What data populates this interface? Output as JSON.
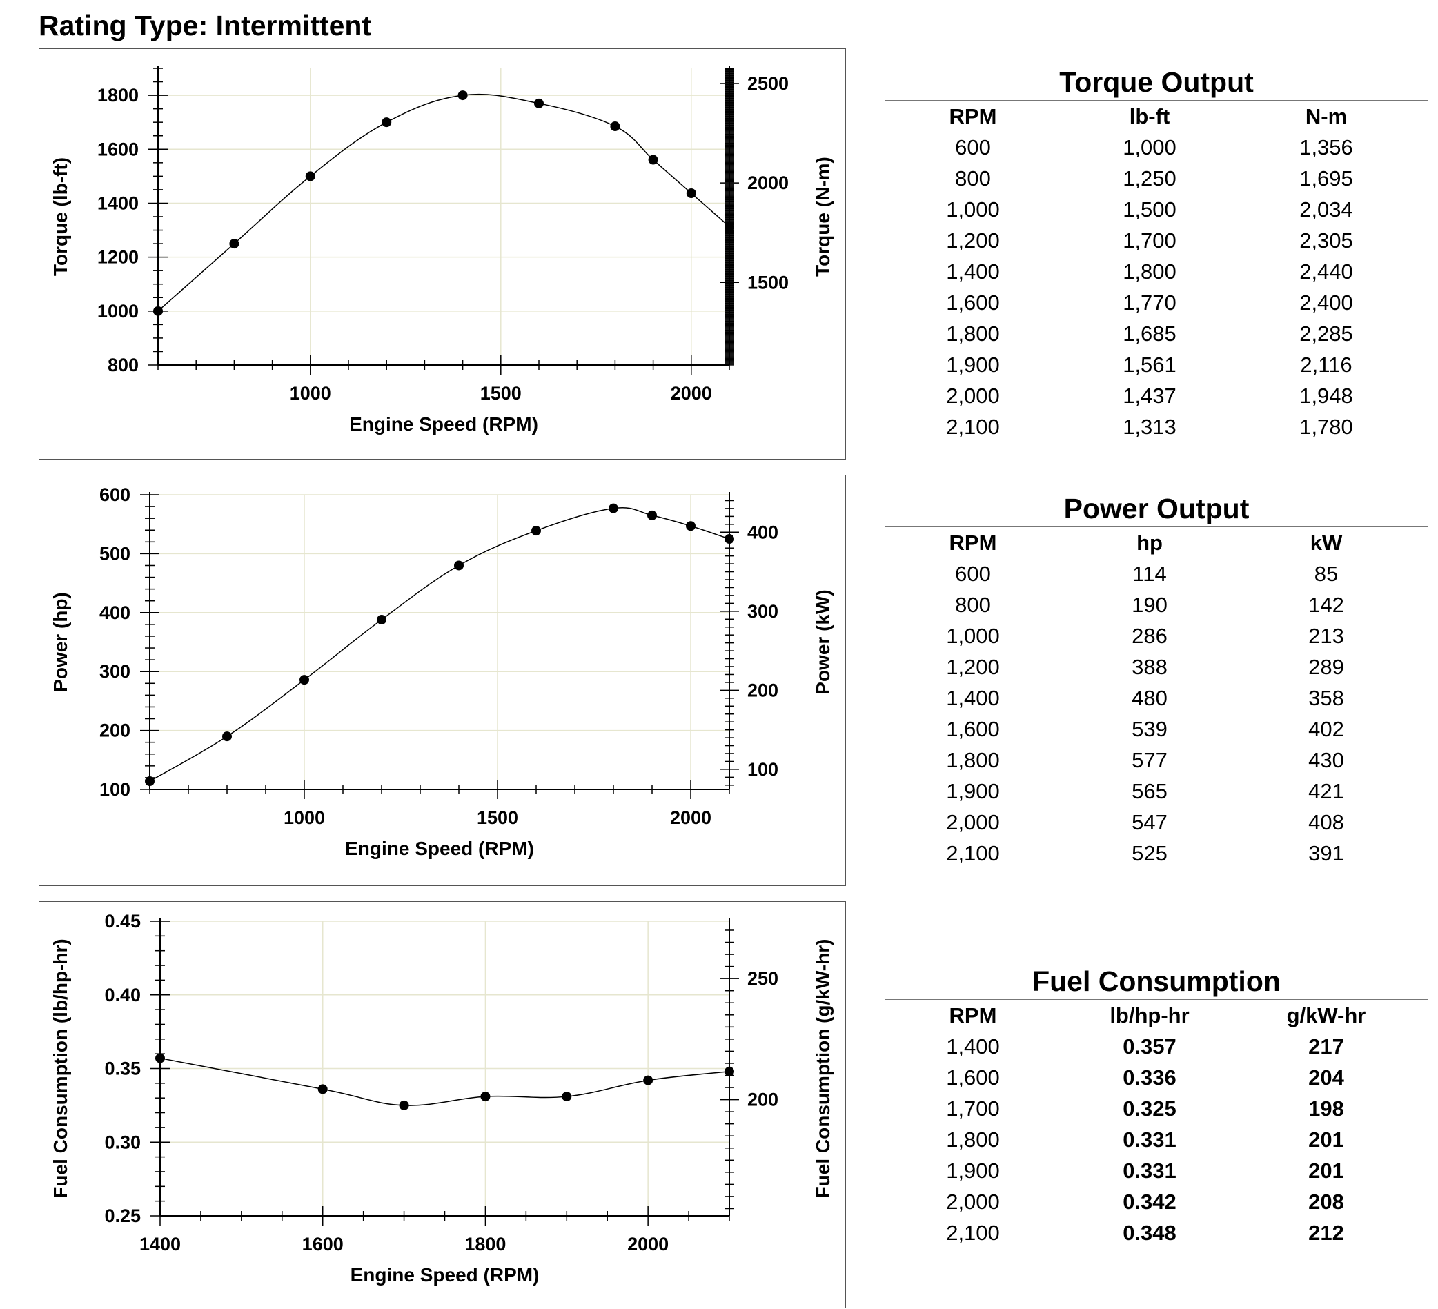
{
  "page": {
    "title": "Rating Type: Intermittent"
  },
  "chart_data": [
    {
      "type": "line",
      "xlabel": "Engine Speed (RPM)",
      "ylabel": "Torque (lb-ft)",
      "y2label": "Torque (N-m)",
      "xlim": [
        600,
        2100
      ],
      "ylim": [
        800,
        1900
      ],
      "y2lim": [
        1084.7,
        2576.1
      ],
      "xticks": [
        1000,
        1500,
        2000
      ],
      "yticks": [
        800,
        1000,
        1200,
        1400,
        1600,
        1800
      ],
      "y2ticks": [
        1500,
        2000,
        2500
      ],
      "grid": true,
      "series": [
        {
          "x": [
            600,
            800,
            1000,
            1200,
            1400,
            1600,
            1800,
            1900,
            2000,
            2100
          ],
          "values": [
            1000,
            1250,
            1500,
            1700,
            1800,
            1770,
            1685,
            1561,
            1437,
            1313
          ]
        }
      ]
    },
    {
      "type": "line",
      "xlabel": "Engine Speed (RPM)",
      "ylabel": "Power (hp)",
      "y2label": "Power (kW)",
      "xlim": [
        600,
        2100
      ],
      "ylim": [
        100,
        600
      ],
      "y2lim": [
        74.6,
        447.4
      ],
      "xticks": [
        1000,
        1500,
        2000
      ],
      "yticks": [
        100,
        200,
        300,
        400,
        500,
        600
      ],
      "y2ticks": [
        100,
        200,
        300,
        400
      ],
      "grid": true,
      "series": [
        {
          "x": [
            600,
            800,
            1000,
            1200,
            1400,
            1600,
            1800,
            1900,
            2000,
            2100
          ],
          "values": [
            114,
            190,
            286,
            388,
            480,
            539,
            577,
            565,
            547,
            525
          ]
        }
      ]
    },
    {
      "type": "line",
      "xlabel": "Engine Speed (RPM)",
      "ylabel": "Fuel Consumption (lb/hp-hr)",
      "y2label": "Fuel Consumption (g/kW-hr)",
      "xlim": [
        1400,
        2100
      ],
      "ylim": [
        0.25,
        0.45
      ],
      "y2lim": [
        152,
        273.7
      ],
      "xticks": [
        1400,
        1600,
        1800,
        2000
      ],
      "yticks": [
        0.25,
        0.3,
        0.35,
        0.4,
        0.45
      ],
      "y2ticks": [
        200,
        250
      ],
      "grid": true,
      "series": [
        {
          "x": [
            1400,
            1600,
            1700,
            1800,
            1900,
            2000,
            2100
          ],
          "values": [
            0.357,
            0.336,
            0.325,
            0.331,
            0.331,
            0.342,
            0.348
          ]
        }
      ]
    }
  ],
  "tables": [
    {
      "title": "Torque Output",
      "headers": [
        "RPM",
        "lb-ft",
        "N-m"
      ],
      "rows": [
        [
          "600",
          "1,000",
          "1,356"
        ],
        [
          "800",
          "1,250",
          "1,695"
        ],
        [
          "1,000",
          "1,500",
          "2,034"
        ],
        [
          "1,200",
          "1,700",
          "2,305"
        ],
        [
          "1,400",
          "1,800",
          "2,440"
        ],
        [
          "1,600",
          "1,770",
          "2,400"
        ],
        [
          "1,800",
          "1,685",
          "2,285"
        ],
        [
          "1,900",
          "1,561",
          "2,116"
        ],
        [
          "2,000",
          "1,437",
          "1,948"
        ],
        [
          "2,100",
          "1,313",
          "1,780"
        ]
      ]
    },
    {
      "title": "Power Output",
      "headers": [
        "RPM",
        "hp",
        "kW"
      ],
      "rows": [
        [
          "600",
          "114",
          "85"
        ],
        [
          "800",
          "190",
          "142"
        ],
        [
          "1,000",
          "286",
          "213"
        ],
        [
          "1,200",
          "388",
          "289"
        ],
        [
          "1,400",
          "480",
          "358"
        ],
        [
          "1,600",
          "539",
          "402"
        ],
        [
          "1,800",
          "577",
          "430"
        ],
        [
          "1,900",
          "565",
          "421"
        ],
        [
          "2,000",
          "547",
          "408"
        ],
        [
          "2,100",
          "525",
          "391"
        ]
      ]
    },
    {
      "title": "Fuel Consumption",
      "headers": [
        "RPM",
        "lb/hp-hr",
        "g/kW-hr"
      ],
      "rows": [
        [
          "1,400",
          "0.357",
          "217"
        ],
        [
          "1,600",
          "0.336",
          "204"
        ],
        [
          "1,700",
          "0.325",
          "198"
        ],
        [
          "1,800",
          "0.331",
          "201"
        ],
        [
          "1,900",
          "0.331",
          "201"
        ],
        [
          "2,000",
          "0.342",
          "208"
        ],
        [
          "2,100",
          "0.348",
          "212"
        ]
      ]
    }
  ]
}
